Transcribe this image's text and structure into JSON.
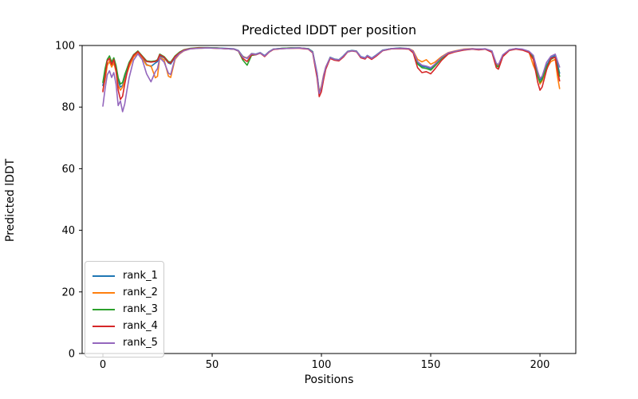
{
  "chart_data": {
    "type": "line",
    "title": "Predicted lDDT per position",
    "xlabel": "Positions",
    "ylabel": "Predicted lDDT",
    "xlim": [
      -9.5,
      216.4
    ],
    "ylim": [
      0,
      100
    ],
    "xticks": [
      0,
      50,
      100,
      150,
      200
    ],
    "yticks": [
      0,
      20,
      40,
      60,
      80,
      100
    ],
    "grid": false,
    "legend_position": "lower-left",
    "x": [
      0,
      1,
      2,
      3,
      4,
      5,
      6,
      7,
      8,
      9,
      10,
      11,
      12,
      14,
      16,
      18,
      20,
      22,
      24,
      25,
      26,
      28,
      30,
      31,
      33,
      35,
      37,
      40,
      44,
      48,
      52,
      56,
      60,
      62,
      64,
      66,
      68,
      70,
      72,
      74,
      76,
      78,
      82,
      86,
      90,
      94,
      96,
      98,
      99,
      100,
      101,
      102,
      104,
      106,
      108,
      110,
      112,
      114,
      116,
      118,
      120,
      121,
      123,
      125,
      128,
      132,
      136,
      140,
      142,
      144,
      146,
      148,
      150,
      152,
      155,
      158,
      161,
      165,
      169,
      172,
      175,
      178,
      180,
      181,
      183,
      186,
      189,
      192,
      195,
      197,
      199,
      200,
      201,
      203,
      205,
      207,
      208,
      209
    ],
    "series": [
      {
        "name": "rank_1",
        "color": "#1f77b4",
        "values": [
          87,
          91,
          94,
          94.6,
          93.2,
          94.2,
          92.5,
          88.5,
          86.5,
          87,
          89.5,
          91.5,
          93.5,
          96.5,
          97.8,
          96.2,
          93.8,
          93.2,
          94.3,
          94.8,
          96.6,
          96,
          94.3,
          94,
          96.2,
          97.5,
          98.4,
          99,
          99.2,
          99.2,
          99.2,
          99.1,
          98.9,
          98.4,
          96.5,
          95.8,
          97.4,
          97.2,
          97.7,
          96.7,
          98,
          98.8,
          99.1,
          99.2,
          99.2,
          99,
          98,
          91,
          85,
          86.5,
          90,
          92.8,
          96.2,
          95.6,
          95.4,
          96.6,
          98.1,
          98.4,
          98.2,
          96.4,
          96,
          96.8,
          95.9,
          96.9,
          98.5,
          99,
          99.2,
          99,
          98.2,
          94.5,
          93.2,
          93,
          92.4,
          93.8,
          96,
          97.5,
          98.1,
          98.7,
          98.9,
          98.8,
          98.9,
          98.2,
          93.8,
          93.3,
          96.8,
          98.6,
          99,
          98.7,
          98,
          96.5,
          91,
          88.8,
          89.5,
          93.5,
          96,
          96.8,
          94,
          91
        ]
      },
      {
        "name": "rank_2",
        "color": "#ff7f0e",
        "values": [
          85.5,
          89,
          93.5,
          95,
          93,
          94.4,
          91.5,
          87,
          85.5,
          86.5,
          88.5,
          91,
          93,
          96.2,
          97.6,
          95.8,
          93.6,
          93.4,
          89.5,
          90,
          96.2,
          95.3,
          90,
          89.6,
          95.5,
          97.2,
          98.2,
          98.9,
          99.1,
          99.2,
          99.1,
          99,
          98.8,
          98.3,
          96.3,
          96,
          97.3,
          97.1,
          97.6,
          96.5,
          97.9,
          98.7,
          99,
          99.1,
          99.2,
          98.9,
          97.8,
          90.5,
          85,
          86.8,
          90.5,
          93,
          96,
          95.4,
          95.2,
          96.4,
          98,
          98.3,
          98.1,
          96.2,
          95.8,
          96.6,
          95.7,
          96.7,
          98.4,
          98.9,
          99.1,
          99,
          98.3,
          95.5,
          94.7,
          95.4,
          93.9,
          94.6,
          96.4,
          97.7,
          98.2,
          98.8,
          99,
          98.8,
          98.9,
          98.1,
          94,
          93.6,
          96.9,
          98.6,
          99,
          98.6,
          97.8,
          93.5,
          90.3,
          87.5,
          88.5,
          92.5,
          94.8,
          95.5,
          90,
          86
        ]
      },
      {
        "name": "rank_3",
        "color": "#2ca02c",
        "values": [
          88,
          92.5,
          95.5,
          96.6,
          94.6,
          96,
          93.5,
          89.5,
          87.5,
          88,
          90.5,
          92.5,
          94.5,
          97,
          98.2,
          96.6,
          95,
          94.8,
          95,
          95.4,
          97.2,
          96.4,
          94.8,
          94.6,
          96.6,
          97.8,
          98.6,
          99.1,
          99.3,
          99.3,
          99.2,
          99,
          98.8,
          98.2,
          95.3,
          93.6,
          96.8,
          97,
          97.6,
          96.5,
          97.9,
          98.8,
          99.1,
          99.2,
          99.2,
          99,
          97.9,
          90.5,
          84.6,
          86.2,
          90,
          92.9,
          96.1,
          95.5,
          95.3,
          96.5,
          98,
          98.3,
          98.1,
          96.2,
          95.8,
          96.7,
          95.7,
          96.8,
          98.4,
          99,
          99.1,
          98.9,
          98,
          94,
          92.8,
          92.5,
          92,
          93.4,
          95.8,
          97.4,
          98,
          98.6,
          98.8,
          98.7,
          98.8,
          98,
          93.4,
          93,
          96.6,
          98.5,
          98.9,
          98.6,
          97.9,
          96,
          90,
          88,
          89,
          93,
          95.5,
          96.3,
          93,
          90
        ]
      },
      {
        "name": "rank_4",
        "color": "#d62728",
        "values": [
          85,
          90,
          95,
          95.8,
          93.8,
          95.4,
          92,
          85.5,
          82.5,
          83.5,
          87.5,
          91,
          94,
          96.8,
          98,
          96.4,
          94.8,
          94.6,
          94.8,
          95.2,
          97,
          96.2,
          94.5,
          94.3,
          96.4,
          97.6,
          98.5,
          99,
          99.2,
          99.2,
          99.1,
          99,
          98.8,
          98.2,
          95.8,
          94.8,
          97,
          97,
          97.5,
          96.4,
          97.8,
          98.7,
          99,
          99.1,
          99.1,
          98.8,
          97.6,
          89.5,
          83.4,
          85,
          89,
          92.3,
          95.8,
          95.2,
          95,
          96.2,
          97.9,
          98.2,
          98,
          96,
          95.6,
          96.4,
          95.5,
          96.5,
          98.3,
          98.9,
          99,
          98.8,
          97.6,
          92.8,
          91.2,
          91.5,
          90.8,
          92.4,
          95.2,
          97.2,
          97.9,
          98.5,
          98.8,
          98.6,
          98.8,
          97.8,
          92.8,
          92.3,
          96.4,
          98.4,
          98.8,
          98.5,
          97.7,
          95.5,
          88,
          85.5,
          86.5,
          92,
          95.8,
          96.2,
          92,
          88.5
        ]
      },
      {
        "name": "rank_5",
        "color": "#9467bd",
        "values": [
          80.3,
          86,
          90.5,
          91.8,
          89.6,
          91.2,
          87.5,
          80.5,
          82,
          78.5,
          81,
          85.5,
          89.5,
          95.2,
          97.3,
          95.4,
          90.8,
          88.2,
          91.5,
          92.5,
          96,
          94.6,
          91,
          90.6,
          95.8,
          97.3,
          98.3,
          98.9,
          99.1,
          99.2,
          99.1,
          99,
          98.8,
          98.3,
          96.2,
          95.9,
          97.3,
          97.1,
          97.6,
          96.6,
          97.9,
          98.8,
          99,
          99.1,
          99.2,
          98.9,
          97.8,
          90.8,
          84.4,
          86.4,
          90.3,
          93,
          96.1,
          95.5,
          95.3,
          96.5,
          98,
          98.3,
          98.1,
          96.3,
          95.9,
          96.7,
          95.8,
          96.8,
          98.4,
          99,
          99.1,
          99,
          98.1,
          94.8,
          93.6,
          93.3,
          92.8,
          94,
          96.2,
          97.6,
          98.1,
          98.7,
          98.9,
          98.8,
          98.9,
          98.2,
          94.2,
          93.8,
          97,
          98.6,
          99,
          98.8,
          98.1,
          96.8,
          91.5,
          89.3,
          90,
          94.5,
          96.5,
          97.2,
          95,
          93
        ]
      }
    ]
  },
  "style": {
    "axis_color": "#000000",
    "background": "#ffffff",
    "line_width": 1.6
  }
}
